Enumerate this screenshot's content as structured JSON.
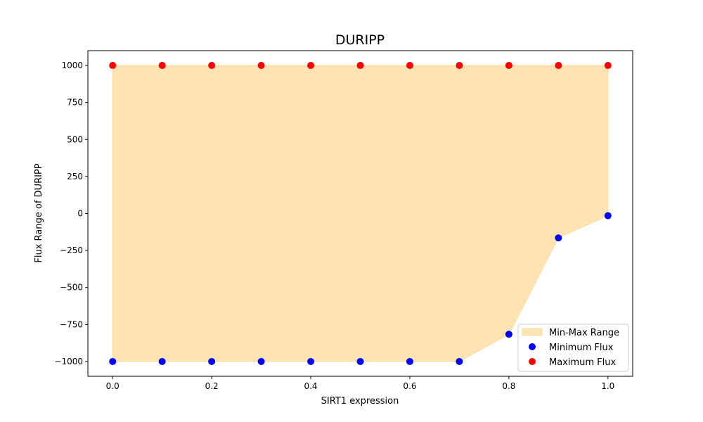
{
  "chart_data": {
    "type": "scatter",
    "title": "DURIPP",
    "xlabel": "SIRT1 expression",
    "ylabel": "Flux Range of DURIPP",
    "xlim": [
      -0.05,
      1.05
    ],
    "ylim": [
      -1100,
      1100
    ],
    "x_ticks": [
      0.0,
      0.2,
      0.4,
      0.6,
      0.8,
      1.0
    ],
    "x_tick_labels": [
      "0.0",
      "0.2",
      "0.4",
      "0.6",
      "0.8",
      "1.0"
    ],
    "y_ticks": [
      -1000,
      -750,
      -500,
      -250,
      0,
      250,
      500,
      750,
      1000
    ],
    "y_tick_labels": [
      "−1000",
      "−750",
      "−500",
      "−250",
      "0",
      "250",
      "500",
      "750",
      "1000"
    ],
    "x": [
      0.0,
      0.1,
      0.2,
      0.3,
      0.4,
      0.5,
      0.6,
      0.7,
      0.8,
      0.9,
      1.0
    ],
    "series": [
      {
        "name": "Min-Max Range",
        "kind": "fill",
        "color": "#ffe3b3"
      },
      {
        "name": "Minimum Flux",
        "kind": "scatter",
        "color": "#0000ff",
        "values": [
          -1000,
          -1000,
          -1000,
          -1000,
          -1000,
          -1000,
          -1000,
          -1000,
          -816,
          -165,
          -15
        ]
      },
      {
        "name": "Maximum Flux",
        "kind": "scatter",
        "color": "#ff0000",
        "values": [
          1000,
          1000,
          1000,
          1000,
          1000,
          1000,
          1000,
          1000,
          1000,
          1000,
          1000
        ]
      }
    ],
    "legend_position": "lower-right",
    "grid": false
  }
}
